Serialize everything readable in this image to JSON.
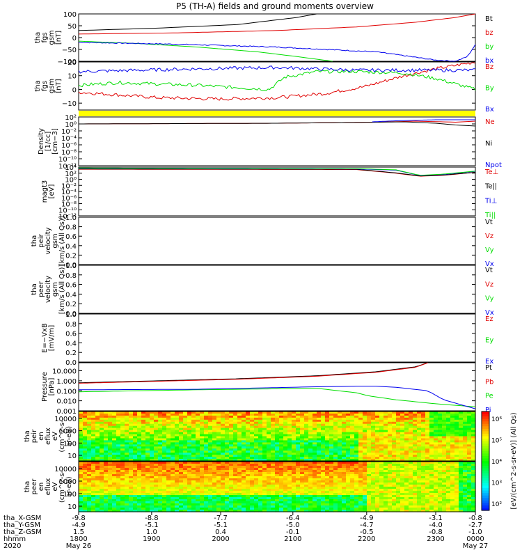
{
  "title": "P5 (TH-A) fields and ground moments overview",
  "colors": {
    "black": "#000000",
    "red": "#e00000",
    "green": "#00dd00",
    "blue": "#0000ee",
    "yellow": "#ffff00"
  },
  "chart_data": [
    {
      "id": "fgs-gsm",
      "type": "line",
      "ylabel": [
        "tha",
        "fgs",
        "gsm",
        "[nT]"
      ],
      "ylim": [
        -100,
        100
      ],
      "ticks": [
        "100",
        "50",
        "0",
        "−50",
        "−100"
      ],
      "tick_values": [
        100,
        50,
        0,
        -50,
        -100
      ],
      "legend": [
        "Bt",
        "bz",
        "by",
        "bx"
      ],
      "series": [
        {
          "name": "Bt",
          "color": "#000000",
          "x": [
            0,
            0.2,
            0.4,
            0.55,
            0.6,
            1
          ],
          "y": [
            30,
            40,
            55,
            85,
            100,
            100
          ]
        },
        {
          "name": "bz",
          "color": "#e00000",
          "x": [
            0,
            0.25,
            0.5,
            0.7,
            0.85,
            0.95,
            1
          ],
          "y": [
            15,
            20,
            30,
            45,
            65,
            85,
            100
          ]
        },
        {
          "name": "by",
          "color": "#00dd00",
          "x": [
            0,
            0.15,
            0.3,
            0.45,
            0.55,
            0.64
          ],
          "y": [
            -15,
            -25,
            -40,
            -60,
            -80,
            -100
          ]
        },
        {
          "name": "bx",
          "color": "#0000ee",
          "x": [
            0,
            0.25,
            0.5,
            0.75,
            0.9,
            0.95,
            0.98,
            1
          ],
          "y": [
            -20,
            -28,
            -40,
            -60,
            -95,
            -100,
            -80,
            -30
          ]
        }
      ]
    },
    {
      "id": "fgs-dsl",
      "type": "line",
      "ylabel": [
        "tha",
        "fgs",
        "gsm",
        "[nT]"
      ],
      "ylim": [
        -15,
        20
      ],
      "ticks": [
        "20",
        "10",
        "0",
        "−10"
      ],
      "tick_values": [
        20,
        10,
        0,
        -10
      ],
      "legend": [
        "Bz",
        "By",
        "Bx"
      ],
      "series": [
        {
          "name": "Bz",
          "color": "#e00000",
          "x": [
            0,
            0.2,
            0.35,
            0.5,
            0.62,
            0.72,
            0.82,
            0.9,
            1
          ],
          "y": [
            -2,
            -6,
            -7,
            -6,
            -3,
            2,
            10,
            15,
            20
          ]
        },
        {
          "name": "By",
          "color": "#00dd00",
          "x": [
            0,
            0.1,
            0.3,
            0.48,
            0.52,
            0.6,
            0.7,
            0.82,
            0.9,
            1
          ],
          "y": [
            3,
            5,
            3,
            0,
            9,
            13,
            13,
            12,
            8,
            0
          ]
        },
        {
          "name": "Bx",
          "color": "#0000ee",
          "x": [
            0,
            0.15,
            0.3,
            0.5,
            0.7,
            0.85,
            1
          ],
          "y": [
            13,
            14,
            15,
            16,
            14,
            14,
            14
          ]
        }
      ]
    },
    {
      "id": "density",
      "type": "line",
      "log": true,
      "ylabel": [
        "Density",
        "[1/cc]",
        "[cm−3]"
      ],
      "ylim": [
        -12,
        2
      ],
      "ticks": [
        "10²",
        "10⁰",
        "10⁻²",
        "10⁻⁴",
        "10⁻⁶",
        "10⁻⁸",
        "10⁻¹⁰",
        "10⁻¹²"
      ],
      "tick_values": [
        2,
        0,
        -2,
        -4,
        -6,
        -8,
        -10,
        -12
      ],
      "legend": [
        "Ne",
        "Ni",
        "Npot"
      ],
      "series": [
        {
          "name": "Ne",
          "color": "#e00000",
          "x": [
            0,
            0.5,
            0.75,
            0.85,
            0.95,
            1
          ],
          "y": [
            0,
            0.2,
            0.5,
            0.8,
            0.5,
            0.8
          ]
        },
        {
          "name": "Ni",
          "color": "#000000",
          "x": [
            0,
            0.5,
            0.75,
            0.82,
            0.9,
            0.95,
            1
          ],
          "y": [
            0,
            0.2,
            0.5,
            0.6,
            0.2,
            -0.3,
            -0.6
          ]
        },
        {
          "name": "Npot",
          "color": "#0000ee",
          "x": [
            0.74,
            0.8,
            0.9,
            1
          ],
          "y": [
            0.6,
            0.9,
            1.2,
            1.2
          ]
        }
      ]
    },
    {
      "id": "temperature",
      "type": "line",
      "log": true,
      "ylabel": [
        "magt3",
        "[eV]"
      ],
      "ylim": [
        -12,
        4
      ],
      "ticks": [
        "10⁴",
        "10²",
        "10⁰",
        "10⁻²",
        "10⁻⁴",
        "10⁻⁶",
        "10⁻⁸",
        "10⁻¹⁰",
        "10⁻¹²"
      ],
      "tick_values": [
        4,
        2,
        0,
        -2,
        -4,
        -6,
        -8,
        -10,
        -12
      ],
      "legend": [
        "Te⊥",
        "Te||",
        "Ti⊥",
        "Ti||"
      ],
      "series": [
        {
          "name": "Te⊥",
          "color": "#e00000",
          "x": [
            0,
            0.7,
            0.8,
            0.86,
            0.92,
            1
          ],
          "y": [
            3.3,
            3.2,
            2,
            1,
            1.3,
            2.3
          ]
        },
        {
          "name": "Te||",
          "color": "#000000",
          "x": [
            0,
            0.7,
            0.8,
            0.86,
            0.92,
            1
          ],
          "y": [
            3.4,
            3.3,
            2.1,
            1.1,
            1.4,
            2.3
          ]
        },
        {
          "name": "Ti⊥",
          "color": "#0000ee",
          "x": [
            0,
            0.7,
            0.8,
            0.86,
            0.92,
            1
          ],
          "y": [
            3.6,
            3.4,
            3,
            1.2,
            1.6,
            2.6
          ]
        },
        {
          "name": "Ti||",
          "color": "#00dd00",
          "x": [
            0,
            0.7,
            0.8,
            0.86,
            0.92,
            1
          ],
          "y": [
            3.7,
            3.5,
            3.1,
            1.3,
            1.7,
            2.7
          ]
        }
      ]
    },
    {
      "id": "peir-velocity",
      "type": "line",
      "ylabel": [
        "tha",
        "peir",
        "velocity",
        "gsm",
        "[km/s (All Qs)]"
      ],
      "ylim": [
        0,
        1
      ],
      "ticks": [
        "1.0",
        "0.8",
        "0.6",
        "0.4",
        "0.2",
        "0.0"
      ],
      "tick_values": [
        1,
        0.8,
        0.6,
        0.4,
        0.2,
        0
      ],
      "legend": [
        "Vt",
        "Vz",
        "Vy",
        "Vx"
      ],
      "series": []
    },
    {
      "id": "peer-velocity",
      "type": "line",
      "ylabel": [
        "tha",
        "peer",
        "velocity",
        "gsm",
        "[km/s (All Qs)]"
      ],
      "ylim": [
        0,
        1
      ],
      "ticks": [
        "1.0",
        "0.8",
        "0.6",
        "0.4",
        "0.2",
        "0.0"
      ],
      "tick_values": [
        1,
        0.8,
        0.6,
        0.4,
        0.2,
        0
      ],
      "legend": [
        "Vt",
        "Vz",
        "Vy",
        "Vx"
      ],
      "series": []
    },
    {
      "id": "e-field",
      "type": "line",
      "ylabel": [
        "E=−VxB",
        "[mV/m]"
      ],
      "ylim": [
        0,
        1
      ],
      "ticks": [
        "1.0",
        "0.8",
        "0.6",
        "0.4",
        "0.2",
        "0.0"
      ],
      "tick_values": [
        1,
        0.8,
        0.6,
        0.4,
        0.2,
        0
      ],
      "legend": [
        "Ez",
        "Ey",
        "Ex"
      ],
      "series": []
    },
    {
      "id": "pressure",
      "type": "line",
      "log": true,
      "ylabel": [
        "Pressure",
        "[nPa]"
      ],
      "ylim": [
        -3,
        1.8
      ],
      "ticks": [
        "10.000",
        "1.000",
        "0.100",
        "0.010",
        "0.001"
      ],
      "tick_values": [
        1,
        0,
        -1,
        -2,
        -3
      ],
      "legend": [
        "Pt",
        "Pb",
        "Pe",
        "Pi"
      ],
      "series": [
        {
          "name": "Pt",
          "color": "#000000",
          "x": [
            0,
            0.2,
            0.4,
            0.6,
            0.75,
            0.85,
            0.88
          ],
          "y": [
            -0.2,
            0,
            0.2,
            0.5,
            0.9,
            1.4,
            1.8
          ]
        },
        {
          "name": "Pb",
          "color": "#e00000",
          "x": [
            0,
            0.2,
            0.4,
            0.6,
            0.75,
            0.85,
            0.88
          ],
          "y": [
            -0.25,
            -0.05,
            0.15,
            0.45,
            0.85,
            1.35,
            1.8
          ]
        },
        {
          "name": "Pe",
          "color": "#00dd00",
          "x": [
            0,
            0.3,
            0.6,
            0.7,
            0.73,
            0.8,
            0.9,
            1
          ],
          "y": [
            -1.1,
            -0.9,
            -0.75,
            -1.2,
            -1.5,
            -1.9,
            -2.3,
            -2.6
          ]
        },
        {
          "name": "Pi",
          "color": "#0000ee",
          "x": [
            0,
            0.3,
            0.6,
            0.7,
            0.75,
            0.8,
            0.88,
            0.92,
            1
          ],
          "y": [
            -0.9,
            -0.85,
            -0.6,
            -0.55,
            -0.55,
            -0.65,
            -1,
            -1.9,
            -2.8
          ]
        }
      ]
    },
    {
      "id": "peir-eflux",
      "type": "heatmap",
      "ylabel": [
        "tha",
        "peir",
        "en",
        "eflux",
        "eV",
        "(cm^2-s-",
        "sr-eV)"
      ],
      "ticks": [
        "10000",
        "1000",
        "100",
        "10"
      ]
    },
    {
      "id": "peer-eflux",
      "type": "heatmap",
      "ylabel": [
        "tha",
        "peer",
        "en",
        "eflux",
        "eV",
        "(cm^2-s-",
        "sr-eV)"
      ],
      "ticks": [
        "10000",
        "1000",
        "100",
        "10"
      ]
    }
  ],
  "colorbar": {
    "label": "[eV/(cm^2-s-sr-eV)] (All Qs)",
    "ticks": [
      "10⁶",
      "10⁵",
      "10⁴",
      "10³",
      "10²"
    ]
  },
  "footer": {
    "rows": [
      {
        "label": "tha_X-GSM",
        "values": [
          "-9.8",
          "-8.8",
          "-7.7",
          "-6.4",
          "-4.9",
          "-3.1",
          "-0.8"
        ]
      },
      {
        "label": "tha_Y-GSM",
        "values": [
          "-4.9",
          "-5.1",
          "-5.1",
          "-5.0",
          "-4.7",
          "-4.0",
          "-2.7"
        ]
      },
      {
        "label": "tha_Z-GSM",
        "values": [
          "1.5",
          "1.0",
          "0.4",
          "-0.1",
          "-0.5",
          "-0.8",
          "-1.0"
        ]
      },
      {
        "label": "hhmm",
        "values": [
          "1800",
          "1900",
          "2000",
          "2100",
          "2200",
          "2300",
          "0000"
        ]
      }
    ],
    "year": "2020",
    "date_start": "May 26",
    "date_end": "May 27"
  }
}
